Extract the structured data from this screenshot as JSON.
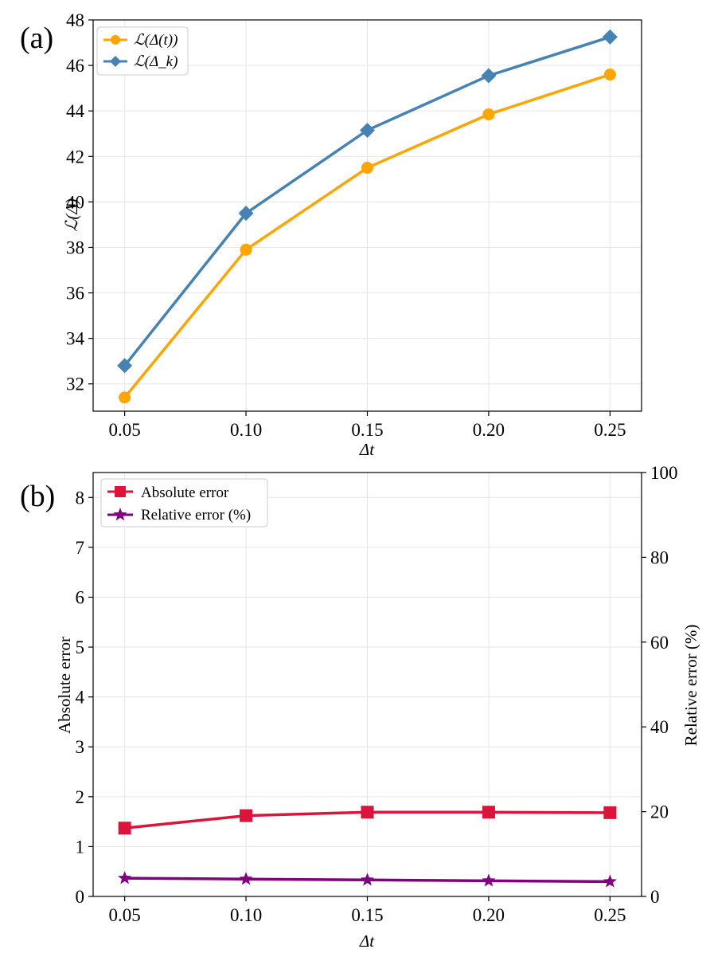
{
  "chart_data": [
    {
      "type": "line",
      "panel_label": "(a)",
      "x": [
        0.05,
        0.1,
        0.15,
        0.2,
        0.25
      ],
      "x_tick_labels": [
        "0.05",
        "0.10",
        "0.15",
        "0.20",
        "0.25"
      ],
      "xlabel": "Δt",
      "ylabel": "ℒ(Δ)",
      "xlim": [
        0.037,
        0.263
      ],
      "ylim": [
        30.8,
        48.0
      ],
      "y_ticks": [
        32,
        34,
        36,
        38,
        40,
        42,
        44,
        46,
        48
      ],
      "grid": true,
      "legend_position": "top-left",
      "series": [
        {
          "name": "ℒ(Δ(t))",
          "marker": "circle",
          "color": "#FFA500",
          "values": [
            31.4,
            37.9,
            41.5,
            43.85,
            45.6
          ]
        },
        {
          "name": "ℒ(Δ_k)",
          "marker": "diamond",
          "color": "#4682B4",
          "values": [
            32.8,
            39.5,
            43.15,
            45.55,
            47.25
          ]
        }
      ]
    },
    {
      "type": "line",
      "panel_label": "(b)",
      "x": [
        0.05,
        0.1,
        0.15,
        0.2,
        0.25
      ],
      "x_tick_labels": [
        "0.05",
        "0.10",
        "0.15",
        "0.20",
        "0.25"
      ],
      "xlabel": "Δt",
      "ylabel": "Absolute error",
      "ylabel_right": "Relative error (%)",
      "xlim": [
        0.037,
        0.263
      ],
      "ylim": [
        0,
        8.5
      ],
      "ylim_right": [
        0,
        100
      ],
      "y_ticks": [
        0,
        1,
        2,
        3,
        4,
        5,
        6,
        7,
        8
      ],
      "y_ticks_right": [
        0,
        20,
        40,
        60,
        80,
        100
      ],
      "grid": true,
      "legend_position": "top-left",
      "series": [
        {
          "name": "Absolute error",
          "marker": "square",
          "color": "#DC143C",
          "axis": "left",
          "values": [
            1.37,
            1.62,
            1.69,
            1.69,
            1.68
          ]
        },
        {
          "name": "Relative error (%)",
          "marker": "star",
          "color": "#800080",
          "axis": "right",
          "values": [
            4.3,
            4.1,
            3.9,
            3.7,
            3.5
          ]
        }
      ]
    }
  ]
}
